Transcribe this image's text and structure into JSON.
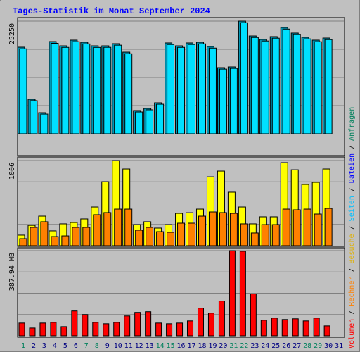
{
  "title": "Tages-Statistik im Monat September 2024",
  "legend": [
    {
      "text": "Volumen",
      "color": "#FF0000"
    },
    {
      "text": "Rechner",
      "color": "#FF8000"
    },
    {
      "text": "Besuche",
      "color": "#E0B000"
    },
    {
      "text": "Seiten",
      "color": "#00C0FF"
    },
    {
      "text": "Dateien",
      "color": "#0000FF"
    },
    {
      "text": "Anfragen",
      "color": "#00805C"
    }
  ],
  "chart_data": [
    {
      "type": "bar",
      "categories": [
        "1",
        "2",
        "3",
        "4",
        "5",
        "6",
        "7",
        "8",
        "9",
        "10",
        "11",
        "12",
        "13",
        "14",
        "15",
        "16",
        "17",
        "18",
        "19",
        "20",
        "21",
        "22",
        "23",
        "24",
        "25",
        "26",
        "27",
        "28",
        "29",
        "30",
        "31"
      ],
      "category_colors": [
        "#00805C",
        "#000080",
        "#000080",
        "#000080",
        "#000080",
        "#000080",
        "#00805C",
        "#00805C",
        "#000080",
        "#000080",
        "#000080",
        "#000080",
        "#000080",
        "#00805C",
        "#00805C",
        "#000080",
        "#000080",
        "#000080",
        "#000080",
        "#000080",
        "#00805C",
        "#00805C",
        "#000080",
        "#000080",
        "#000080",
        "#000080",
        "#000080",
        "#00805C",
        "#00805C",
        "#000080",
        "#000080"
      ],
      "series": [
        {
          "color": "#0096B4",
          "values": [
            19410,
            7730,
            4730,
            20670,
            19720,
            20990,
            20510,
            19720,
            19720,
            20200,
            18300,
            5210,
            5680,
            6940,
            20360,
            19720,
            20360,
            20510,
            19570,
            14830,
            14990,
            25250,
            21930,
            21150,
            21780,
            23830,
            22570,
            21620,
            20990,
            21460,
            null
          ]
        },
        {
          "color": "#00E0FF",
          "values": [
            19050,
            7420,
            4410,
            20280,
            19370,
            20640,
            20150,
            19360,
            19380,
            19860,
            17940,
            4890,
            5370,
            6620,
            20010,
            19370,
            20020,
            20160,
            19210,
            14500,
            14660,
            24890,
            21580,
            20800,
            21430,
            23470,
            22220,
            21270,
            20640,
            21110,
            null
          ]
        }
      ],
      "ylim": [
        0,
        25250
      ],
      "yticks": [
        25250
      ]
    },
    {
      "type": "bar",
      "series": [
        {
          "color": "#FFFF00",
          "values": [
            125,
            240,
            349,
            175,
            258,
            274,
            316,
            457,
            756,
            1006,
            906,
            249,
            283,
            208,
            249,
            382,
            390,
            432,
            814,
            881,
            632,
            457,
            258,
            341,
            341,
            981,
            897,
            723,
            748,
            906,
            null
          ]
        },
        {
          "color": "#FF8000",
          "values": [
            83,
            216,
            283,
            108,
            116,
            216,
            216,
            366,
            391,
            432,
            432,
            183,
            216,
            166,
            158,
            266,
            266,
            349,
            399,
            391,
            382,
            258,
            150,
            249,
            249,
            432,
            424,
            432,
            374,
            440,
            null
          ]
        }
      ],
      "ylim": [
        0,
        1006
      ],
      "yticks": [
        1006
      ]
    },
    {
      "type": "bar",
      "series": [
        {
          "color": "#FF0000",
          "values": [
            58.2,
            35.6,
            58.2,
            61.4,
            42.0,
            113.2,
            97.0,
            61.4,
            55.0,
            61.4,
            90.5,
            106.7,
            109.9,
            58.2,
            55.0,
            58.2,
            67.9,
            126.1,
            103.5,
            158.4,
            387.94,
            385.0,
            190.7,
            71.1,
            80.8,
            74.4,
            77.6,
            67.9,
            80.8,
            45.3,
            null
          ]
        }
      ],
      "ylim": [
        0,
        387.94
      ],
      "yticks": [
        {
          "value": 387.94,
          "label": "387.94 MB"
        }
      ]
    }
  ]
}
